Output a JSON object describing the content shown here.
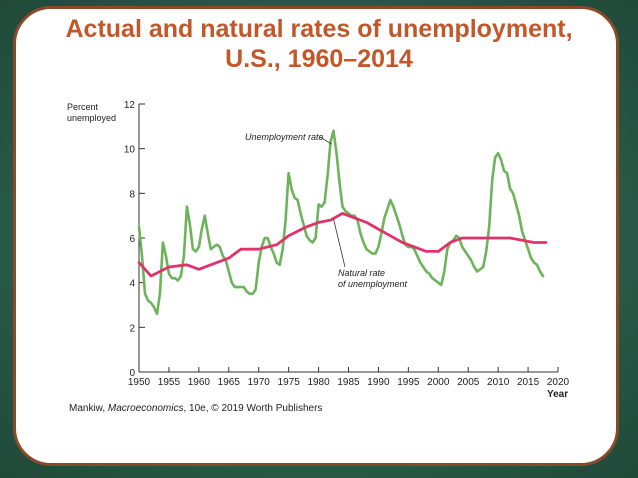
{
  "page": {
    "title_line1": "Actual and natural rates of unemployment,",
    "title_line2": "U.S., 1960–2014",
    "credit_prefix": "Mankiw, ",
    "credit_book": "Macroeconomics",
    "credit_suffix": ", 10e, © 2019 Worth Publishers"
  },
  "colors": {
    "actual": "#6db35a",
    "natural": "#e0336b",
    "title": "#c2582a",
    "frame": "#8a4a2a"
  },
  "chart_data": {
    "type": "line",
    "ylabel_line1": "Percent",
    "ylabel_line2": "unemployed",
    "xlabel": "Year",
    "xlim": [
      1950,
      2020
    ],
    "ylim": [
      0,
      12
    ],
    "x_ticks": [
      "1950",
      "1955",
      "1960",
      "1965",
      "1970",
      "1975",
      "1980",
      "1985",
      "1990",
      "1995",
      "2000",
      "2005",
      "2010",
      "2015",
      "2020"
    ],
    "y_ticks": [
      "0",
      "2",
      "4",
      "6",
      "8",
      "10",
      "12"
    ],
    "grid": false,
    "series": [
      {
        "name": "Unemployment rate",
        "key": "actual",
        "x": [
          1950,
          1950.5,
          1951,
          1951.5,
          1952,
          1952.5,
          1953,
          1953.5,
          1954,
          1954.5,
          1955,
          1955.5,
          1956,
          1956.5,
          1957,
          1957.5,
          1958,
          1958.5,
          1959,
          1959.5,
          1960,
          1960.5,
          1961,
          1961.5,
          1962,
          1962.5,
          1963,
          1963.5,
          1964,
          1964.5,
          1965,
          1965.5,
          1966,
          1966.5,
          1967,
          1967.5,
          1968,
          1968.5,
          1969,
          1969.5,
          1970,
          1970.5,
          1971,
          1971.5,
          1972,
          1972.5,
          1973,
          1973.5,
          1974,
          1974.5,
          1975,
          1975.5,
          1976,
          1976.5,
          1977,
          1977.5,
          1978,
          1978.5,
          1979,
          1979.5,
          1980,
          1980.5,
          1981,
          1981.5,
          1982,
          1982.5,
          1983,
          1983.5,
          1984,
          1984.5,
          1985,
          1985.5,
          1986,
          1986.5,
          1987,
          1987.5,
          1988,
          1988.5,
          1989,
          1989.5,
          1990,
          1990.5,
          1991,
          1991.5,
          1992,
          1992.5,
          1993,
          1993.5,
          1994,
          1994.5,
          1995,
          1995.5,
          1996,
          1996.5,
          1997,
          1997.5,
          1998,
          1998.5,
          1999,
          1999.5,
          2000,
          2000.5,
          2001,
          2001.5,
          2002,
          2002.5,
          2003,
          2003.5,
          2004,
          2004.5,
          2005,
          2005.5,
          2006,
          2006.5,
          2007,
          2007.5,
          2008,
          2008.5,
          2009,
          2009.5,
          2010,
          2010.5,
          2011,
          2011.5,
          2012,
          2012.5,
          2013,
          2013.5,
          2014,
          2014.5,
          2015,
          2015.5,
          2016,
          2016.5,
          2017,
          2017.5
        ],
        "y": [
          6.5,
          5.2,
          3.5,
          3.2,
          3.1,
          2.9,
          2.6,
          3.5,
          5.8,
          5.2,
          4.4,
          4.2,
          4.2,
          4.1,
          4.3,
          5.2,
          7.4,
          6.6,
          5.5,
          5.4,
          5.6,
          6.4,
          7.0,
          6.2,
          5.5,
          5.6,
          5.7,
          5.6,
          5.2,
          5.0,
          4.5,
          4.0,
          3.8,
          3.8,
          3.8,
          3.8,
          3.6,
          3.5,
          3.5,
          3.7,
          4.9,
          5.6,
          6.0,
          6.0,
          5.6,
          5.3,
          4.9,
          4.8,
          5.5,
          6.8,
          8.9,
          8.2,
          7.8,
          7.7,
          7.1,
          6.6,
          6.1,
          5.9,
          5.8,
          6.0,
          7.5,
          7.4,
          7.6,
          8.8,
          10.3,
          10.8,
          9.8,
          8.5,
          7.4,
          7.2,
          7.1,
          7.0,
          7.0,
          6.8,
          6.2,
          5.8,
          5.5,
          5.4,
          5.3,
          5.3,
          5.6,
          6.2,
          6.9,
          7.3,
          7.7,
          7.4,
          7.0,
          6.6,
          6.1,
          5.7,
          5.6,
          5.6,
          5.5,
          5.2,
          4.9,
          4.7,
          4.5,
          4.4,
          4.2,
          4.1,
          4.0,
          3.9,
          4.5,
          5.5,
          5.8,
          5.9,
          6.1,
          6.0,
          5.6,
          5.4,
          5.2,
          5.0,
          4.7,
          4.5,
          4.6,
          4.7,
          5.4,
          6.5,
          8.6,
          9.6,
          9.8,
          9.5,
          9.0,
          8.9,
          8.2,
          8.0,
          7.5,
          7.0,
          6.3,
          5.9,
          5.5,
          5.1,
          4.9,
          4.8,
          4.5,
          4.3
        ]
      },
      {
        "name": "Natural rate of unemployment",
        "name_line1": "Natural rate",
        "name_line2": "of unemployment",
        "key": "natural",
        "x": [
          1950,
          1952,
          1955,
          1958,
          1960,
          1962,
          1965,
          1967,
          1970,
          1973,
          1975,
          1978,
          1980,
          1982,
          1984,
          1986,
          1988,
          1990,
          1992,
          1994,
          1996,
          1998,
          2000,
          2002,
          2004,
          2006,
          2008,
          2010,
          2012,
          2014,
          2016,
          2018
        ],
        "y": [
          4.9,
          4.3,
          4.7,
          4.8,
          4.6,
          4.8,
          5.1,
          5.5,
          5.5,
          5.7,
          6.1,
          6.5,
          6.7,
          6.8,
          7.1,
          6.9,
          6.7,
          6.4,
          6.1,
          5.8,
          5.6,
          5.4,
          5.4,
          5.8,
          6.0,
          6.0,
          6.0,
          6.0,
          6.0,
          5.9,
          5.8,
          5.8
        ]
      }
    ]
  }
}
